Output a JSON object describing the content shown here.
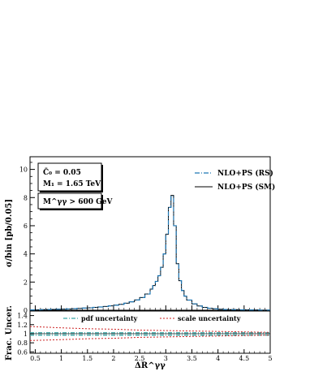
{
  "chart_data": [
    {
      "type": "line",
      "title": "",
      "ylabel": "σ/bin  [pb/0.05]",
      "xlim": [
        0.4,
        5.0
      ],
      "ylim": [
        0,
        10.9
      ],
      "yticks": [
        0,
        2,
        4,
        6,
        8,
        10
      ],
      "grid": false,
      "legend_position": "top-right",
      "annotations": [
        {
          "id": "coupling",
          "label": "C̄₀ = 0.05"
        },
        {
          "id": "mass",
          "label": "M₁ = 1.65 TeV"
        },
        {
          "id": "cut",
          "label": "M^γγ > 600 GeV"
        }
      ],
      "series": [
        {
          "name": "NLO+PS (RS)",
          "style": "dash-dot",
          "color": "#1f77b4",
          "x": [
            0.4,
            0.5,
            0.6,
            0.7,
            0.8,
            0.9,
            1.0,
            1.1,
            1.2,
            1.3,
            1.4,
            1.5,
            1.6,
            1.7,
            1.8,
            1.9,
            2.0,
            2.1,
            2.2,
            2.3,
            2.4,
            2.5,
            2.6,
            2.7,
            2.75,
            2.8,
            2.85,
            2.9,
            2.95,
            3.0,
            3.05,
            3.1,
            3.15,
            3.2,
            3.25,
            3.3,
            3.35,
            3.4,
            3.5,
            3.6,
            3.7,
            3.8,
            3.9,
            4.0,
            4.1,
            4.2,
            4.4,
            4.6,
            4.8,
            5.0
          ],
          "y": [
            0.02,
            0.03,
            0.04,
            0.05,
            0.06,
            0.07,
            0.08,
            0.09,
            0.11,
            0.13,
            0.15,
            0.17,
            0.2,
            0.23,
            0.27,
            0.31,
            0.36,
            0.42,
            0.5,
            0.6,
            0.73,
            0.9,
            1.15,
            1.5,
            1.75,
            2.05,
            2.45,
            3.05,
            4.0,
            5.4,
            7.3,
            8.1,
            6.0,
            3.3,
            2.1,
            1.4,
            1.0,
            0.72,
            0.45,
            0.3,
            0.2,
            0.14,
            0.1,
            0.07,
            0.05,
            0.04,
            0.03,
            0.02,
            0.01,
            0.01
          ]
        },
        {
          "name": "NLO+PS (SM)",
          "style": "solid-step",
          "color": "#000000",
          "x": [
            0.4,
            0.5,
            0.6,
            0.7,
            0.8,
            0.9,
            1.0,
            1.1,
            1.2,
            1.3,
            1.4,
            1.5,
            1.6,
            1.7,
            1.8,
            1.9,
            2.0,
            2.1,
            2.2,
            2.3,
            2.4,
            2.5,
            2.6,
            2.7,
            2.75,
            2.8,
            2.85,
            2.9,
            2.95,
            3.0,
            3.05,
            3.1,
            3.15,
            3.2,
            3.25,
            3.3,
            3.35,
            3.4,
            3.5,
            3.6,
            3.7,
            3.8,
            3.9,
            4.0,
            4.1,
            4.2,
            4.4,
            4.6,
            4.8,
            5.0
          ],
          "y": [
            0.02,
            0.03,
            0.04,
            0.05,
            0.06,
            0.07,
            0.08,
            0.09,
            0.11,
            0.13,
            0.15,
            0.17,
            0.2,
            0.23,
            0.27,
            0.31,
            0.36,
            0.42,
            0.5,
            0.6,
            0.73,
            0.9,
            1.15,
            1.5,
            1.75,
            2.05,
            2.45,
            3.05,
            4.0,
            5.4,
            7.3,
            8.15,
            6.0,
            3.3,
            2.1,
            1.4,
            1.0,
            0.72,
            0.45,
            0.3,
            0.2,
            0.14,
            0.1,
            0.07,
            0.05,
            0.04,
            0.03,
            0.02,
            0.01,
            0.01
          ]
        }
      ]
    },
    {
      "type": "line",
      "title": "",
      "xlabel": "ΔR^γγ",
      "ylabel": "Frac. Uncer.",
      "xlim": [
        0.4,
        5.0
      ],
      "ylim": [
        0.57,
        1.5
      ],
      "xticks": [
        0.5,
        1,
        1.5,
        2,
        2.5,
        3,
        3.5,
        4,
        4.5,
        5
      ],
      "yticks": [
        0.6,
        0.8,
        1,
        1.2,
        1.4
      ],
      "grid": false,
      "legend_position": "top",
      "series": [
        {
          "name": "pdf uncertainty",
          "style": "dash-dot",
          "color": "#3aa6a6",
          "x": [
            0.4,
            1.0,
            1.5,
            2.0,
            2.5,
            3.0,
            3.5,
            4.0,
            4.5,
            5.0
          ],
          "upper": [
            1.02,
            1.02,
            1.02,
            1.02,
            1.02,
            1.02,
            1.02,
            1.02,
            1.02,
            1.02
          ],
          "lower": [
            0.97,
            0.97,
            0.97,
            0.97,
            0.97,
            0.97,
            0.97,
            0.97,
            0.97,
            0.97
          ]
        },
        {
          "name": "scale uncertainty",
          "style": "dashed",
          "color": "#cc2222",
          "x": [
            0.4,
            1.0,
            1.5,
            2.0,
            2.5,
            3.0,
            3.5,
            4.0,
            4.5,
            5.0
          ],
          "upper": [
            1.16,
            1.13,
            1.11,
            1.1,
            1.08,
            1.07,
            1.06,
            1.05,
            1.04,
            1.03
          ],
          "lower": [
            0.85,
            0.87,
            0.89,
            0.9,
            0.92,
            0.93,
            0.94,
            0.95,
            0.96,
            0.97
          ]
        }
      ]
    }
  ]
}
